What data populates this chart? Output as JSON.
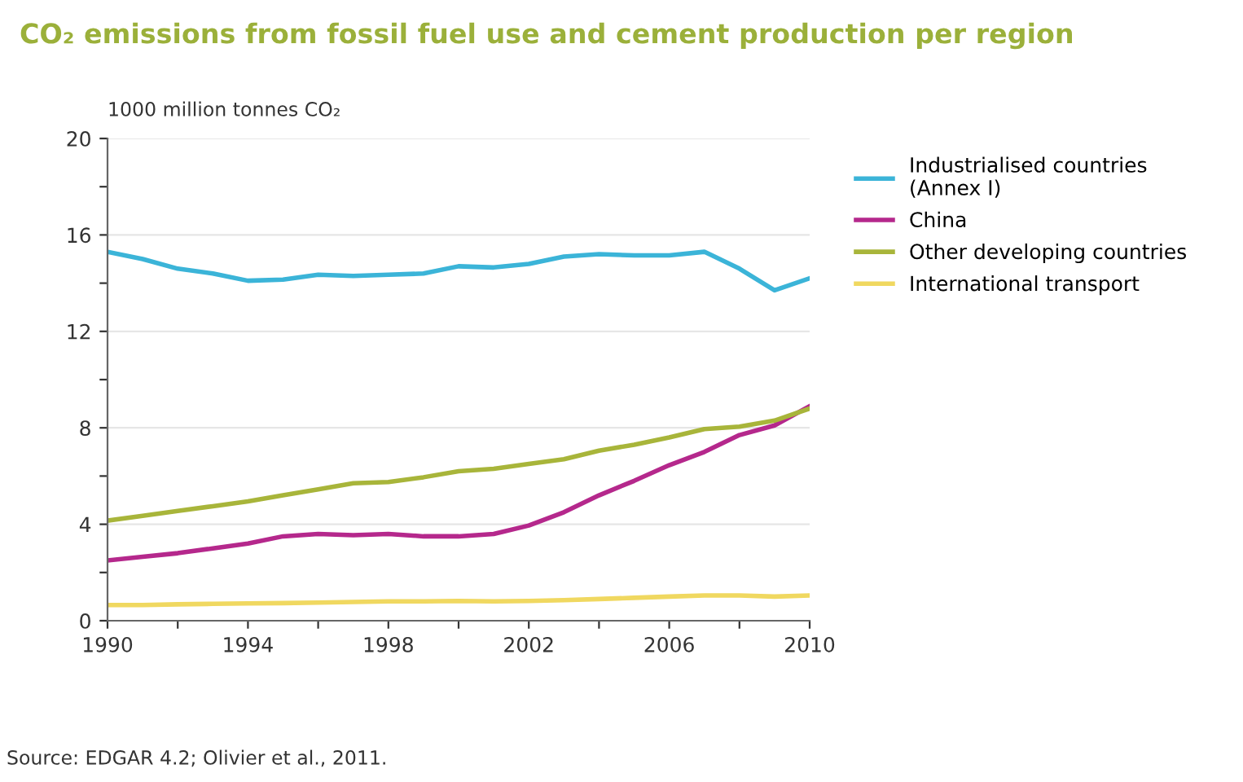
{
  "chart_data": {
    "type": "line",
    "title": "CO₂ emissions from fossil fuel use and cement production per region",
    "ylabel": "1000 million tonnes CO₂",
    "x": [
      1990,
      1991,
      1992,
      1993,
      1994,
      1995,
      1996,
      1997,
      1998,
      1999,
      2000,
      2001,
      2002,
      2003,
      2004,
      2005,
      2006,
      2007,
      2008,
      2009,
      2010
    ],
    "series": [
      {
        "name": "Industrialised countries\n(Annex I)",
        "color": "#3bb4d8",
        "values": [
          15.3,
          15.0,
          14.6,
          14.4,
          14.1,
          14.15,
          14.35,
          14.3,
          14.35,
          14.4,
          14.7,
          14.65,
          14.8,
          15.1,
          15.2,
          15.15,
          15.15,
          15.3,
          14.6,
          13.7,
          14.2
        ]
      },
      {
        "name": "China",
        "color": "#b5288c",
        "values": [
          2.5,
          2.65,
          2.8,
          3.0,
          3.2,
          3.5,
          3.6,
          3.55,
          3.6,
          3.5,
          3.5,
          3.6,
          3.95,
          4.5,
          5.2,
          5.8,
          6.45,
          7.0,
          7.7,
          8.1,
          8.9
        ]
      },
      {
        "name": "Other developing countries",
        "color": "#a8b53a",
        "values": [
          4.15,
          4.35,
          4.55,
          4.75,
          4.95,
          5.2,
          5.45,
          5.7,
          5.75,
          5.95,
          6.2,
          6.3,
          6.5,
          6.7,
          7.05,
          7.3,
          7.6,
          7.95,
          8.05,
          8.3,
          8.8
        ]
      },
      {
        "name": "International transport",
        "color": "#f0d860",
        "values": [
          0.65,
          0.65,
          0.68,
          0.7,
          0.72,
          0.73,
          0.75,
          0.78,
          0.8,
          0.8,
          0.82,
          0.8,
          0.82,
          0.85,
          0.9,
          0.95,
          1.0,
          1.05,
          1.05,
          1.0,
          1.05
        ]
      }
    ],
    "xlim": [
      1990,
      2010
    ],
    "xticks": [
      1990,
      {
        "value": 1992,
        "label": null
      },
      1994,
      {
        "value": 1996,
        "label": null
      },
      1998,
      {
        "value": 2000,
        "label": null
      },
      2002,
      {
        "value": 2004,
        "label": null
      },
      2006,
      {
        "value": 2008,
        "label": null
      },
      2010
    ],
    "ylim": [
      0,
      20
    ],
    "yticks": [
      0,
      {
        "value": 2,
        "label": null
      },
      4,
      {
        "value": 6,
        "label": null
      },
      8,
      {
        "value": 10,
        "label": null
      },
      12,
      {
        "value": 14,
        "label": null
      },
      16,
      {
        "value": 18,
        "label": null
      },
      20
    ],
    "grid": "y",
    "legend": "right",
    "marker": "none",
    "line_style": "solid",
    "annotations": [
      "Source: EDGAR 4.2; Olivier et al., 2011."
    ]
  }
}
